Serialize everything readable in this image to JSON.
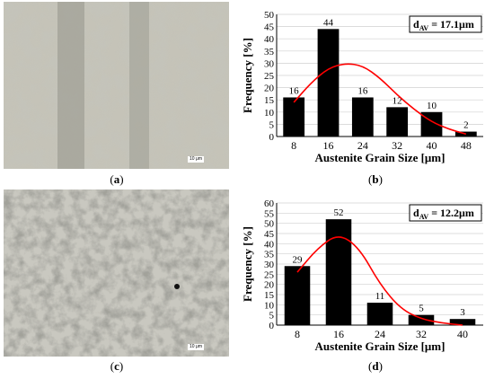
{
  "panels": {
    "a": {
      "caption": "a",
      "scalebar": "10 μm"
    },
    "b": {
      "caption": "b"
    },
    "c": {
      "caption": "c",
      "scalebar": "10 μm"
    },
    "d": {
      "caption": "d"
    }
  },
  "chart_data": [
    {
      "type": "bar",
      "categories": [
        "8",
        "16",
        "24",
        "32",
        "40",
        "48"
      ],
      "values": [
        16,
        44,
        16,
        12,
        10,
        2
      ],
      "data_labels": [
        "16",
        "44",
        "16",
        "12",
        "10",
        "2"
      ],
      "xlabel": "Austenite Grain Size [μm]",
      "ylabel": "Frequency [%]",
      "ylim": [
        0,
        50
      ],
      "yticks": [
        0,
        5,
        10,
        15,
        20,
        25,
        30,
        35,
        40,
        45,
        50
      ],
      "grid": true,
      "bar_color": "#000000",
      "curve_color": "#ff0000",
      "fit_curve": {
        "x": [
          8,
          12,
          16,
          20,
          24,
          28,
          32,
          36,
          40,
          44,
          48
        ],
        "y": [
          14,
          22,
          28,
          30,
          29,
          24,
          17,
          11,
          6,
          3,
          1
        ]
      },
      "annotation": {
        "text": "d",
        "subscript": "AV",
        "value": " = 17.1μm"
      }
    },
    {
      "type": "bar",
      "categories": [
        "8",
        "16",
        "24",
        "32",
        "40"
      ],
      "values": [
        29,
        52,
        11,
        5,
        3
      ],
      "data_labels": [
        "29",
        "52",
        "11",
        "5",
        "3"
      ],
      "xlabel": "Austenite Grain Size [μm]",
      "ylabel": "Frequency [%]",
      "ylim": [
        0,
        60
      ],
      "yticks": [
        0,
        5,
        10,
        15,
        20,
        25,
        30,
        35,
        40,
        45,
        50,
        55,
        60
      ],
      "grid": true,
      "bar_color": "#000000",
      "curve_color": "#ff0000",
      "fit_curve": {
        "x": [
          8,
          12,
          16,
          20,
          24,
          28,
          32,
          36,
          40
        ],
        "y": [
          26,
          38,
          45,
          38,
          20,
          8,
          3,
          1,
          0
        ]
      },
      "annotation": {
        "text": "d",
        "subscript": "AV",
        "value": " = 12.2μm"
      }
    }
  ]
}
